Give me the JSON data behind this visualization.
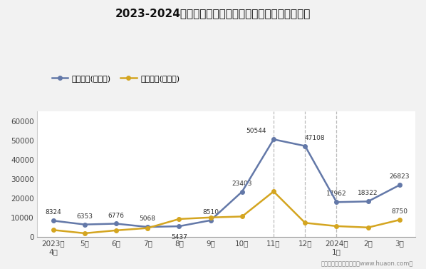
{
  "title": "2023-2024年泸州市商品收发货人所在地进、出口额统计",
  "xlabel_ticks": [
    "2023年\n4月",
    "5月",
    "6月",
    "7月",
    "8月",
    "9月",
    "10月",
    "11月",
    "12月",
    "2024年\n1月",
    "2月",
    "3月"
  ],
  "export_values": [
    8324,
    6353,
    6776,
    5068,
    5437,
    8510,
    23403,
    50544,
    47108,
    17962,
    18322,
    26823
  ],
  "import_values": [
    3500,
    1800,
    3300,
    4500,
    9200,
    10000,
    10500,
    23500,
    7200,
    5500,
    4800,
    8750
  ],
  "export_label": "出口总额(万美元)",
  "import_label": "进口总额(万美元)",
  "export_color": "#6378a8",
  "import_color": "#d4a520",
  "ylim": [
    0,
    65000
  ],
  "yticks": [
    0,
    10000,
    20000,
    30000,
    40000,
    50000,
    60000
  ],
  "footer": "制图：华经产业研究院（www.huaon.com）",
  "bg_color": "#f2f2f2",
  "plot_bg_color": "#ffffff",
  "export_annots": [
    8324,
    6353,
    6776,
    5068,
    5437,
    8510,
    23403,
    50544,
    47108,
    17962,
    18322,
    26823
  ],
  "import_annot_idx": 11,
  "import_annot_val": 8750,
  "dashed_lines_indices": [
    7,
    8,
    9
  ],
  "line_width": 1.8,
  "marker_size": 4
}
